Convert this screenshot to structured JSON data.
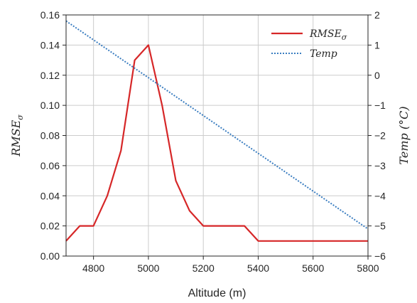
{
  "chart_data": {
    "type": "line",
    "xlabel": "Altitude (m)",
    "ylabel_left": "RMSE_σ",
    "ylabel_right": "Temp (°C)",
    "xlim": [
      4700,
      5800
    ],
    "ylim_left": [
      0,
      0.16
    ],
    "ylim_right": [
      -6,
      2
    ],
    "x_ticks": [
      4800,
      5000,
      5200,
      5400,
      5600,
      5800
    ],
    "x_tick_labels": [
      "4800",
      "5000",
      "5200",
      "5400",
      "5600",
      "5800"
    ],
    "y_left_ticks": [
      0,
      0.02,
      0.04,
      0.06,
      0.08,
      0.1,
      0.12,
      0.14,
      0.16
    ],
    "y_left_tick_labels": [
      "0.00",
      "0.02",
      "0.04",
      "0.06",
      "0.08",
      "0.10",
      "0.12",
      "0.14",
      "0.16"
    ],
    "y_right_ticks": [
      -6,
      -5,
      -4,
      -3,
      -2,
      -1,
      0,
      1,
      2
    ],
    "y_right_tick_labels": [
      "−6",
      "−5",
      "−4",
      "−3",
      "−2",
      "−1",
      "0",
      "1",
      "2"
    ],
    "grid": true,
    "legend_position": "top-right",
    "series": [
      {
        "name": "RMSE_σ",
        "axis": "left",
        "style": "solid",
        "color": "#d62728",
        "x": [
          4700,
          4750,
          4800,
          4850,
          4900,
          4950,
          5000,
          5050,
          5100,
          5150,
          5200,
          5250,
          5300,
          5350,
          5400,
          5450,
          5500,
          5550,
          5600,
          5650,
          5700,
          5750,
          5800
        ],
        "y": [
          0.01,
          0.02,
          0.02,
          0.04,
          0.07,
          0.13,
          0.14,
          0.1,
          0.05,
          0.03,
          0.02,
          0.02,
          0.02,
          0.02,
          0.01,
          0.01,
          0.01,
          0.01,
          0.01,
          0.01,
          0.01,
          0.01,
          0.01
        ]
      },
      {
        "name": "Temp",
        "axis": "right",
        "style": "dotted",
        "color": "#3a7dc0",
        "x": [
          4700,
          5800
        ],
        "y": [
          1.8,
          -5.1
        ]
      }
    ]
  }
}
